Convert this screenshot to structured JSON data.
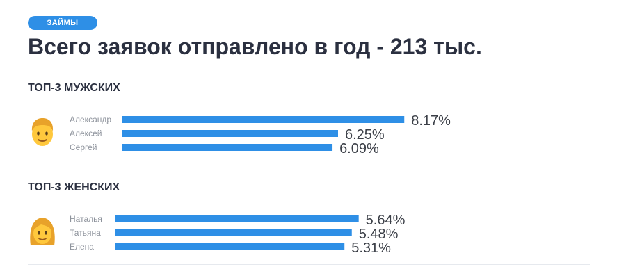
{
  "badge": "ЗАЙМЫ",
  "title": "Всего заявок отправлено в год - 213 тыс.",
  "colors": {
    "accent": "#2e8fe6"
  },
  "chart_data": [
    {
      "type": "bar",
      "orientation": "horizontal",
      "title": "ТОП-3 МУЖСКИХ",
      "icon": "man-emoji-icon",
      "categories": [
        "Александр",
        "Алексей",
        "Сергей"
      ],
      "values": [
        8.17,
        6.25,
        6.09
      ],
      "value_labels": [
        "8.17%",
        "6.25%",
        "6.09%"
      ],
      "unit": "%"
    },
    {
      "type": "bar",
      "orientation": "horizontal",
      "title": "ТОП-3 ЖЕНСКИХ",
      "icon": "woman-emoji-icon",
      "categories": [
        "Наталья",
        "Татьяна",
        "Елена"
      ],
      "values": [
        5.64,
        5.48,
        5.31
      ],
      "value_labels": [
        "5.64%",
        "5.48%",
        "5.31%"
      ],
      "unit": "%"
    }
  ]
}
